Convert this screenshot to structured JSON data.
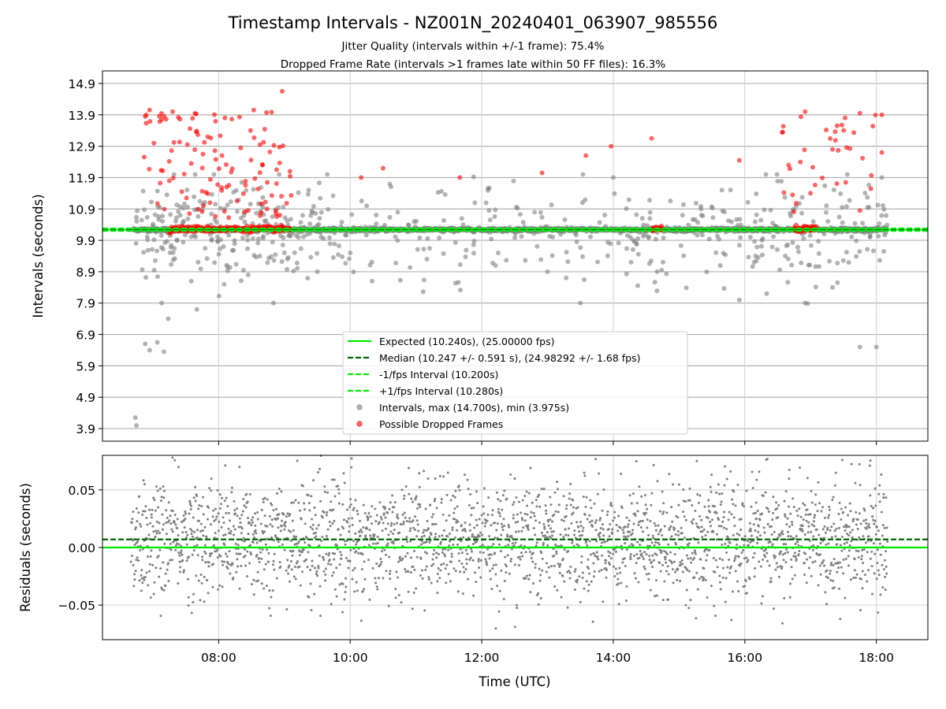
{
  "chart_data": [
    {
      "type": "scatter",
      "title": "Timestamp Intervals - NZ001N_20240401_063907_985556",
      "subtitle_lines": [
        "Jitter Quality (intervals within +/-1 frame): 75.4%",
        "Dropped Frame Rate (intervals >1 frames late within 50 FF files): 16.3%"
      ],
      "xlabel": "",
      "ylabel": "Intervals (seconds)",
      "xlim": [
        "06:14",
        "18:47"
      ],
      "ylim": [
        3.5,
        15.3
      ],
      "yticks": [
        3.9,
        4.9,
        5.9,
        6.9,
        7.9,
        8.9,
        9.9,
        10.9,
        11.9,
        12.9,
        13.9,
        14.9
      ],
      "xticks": [
        "08:00",
        "10:00",
        "12:00",
        "14:00",
        "16:00",
        "18:00"
      ],
      "grid": true,
      "legend_position": "lower center",
      "reference_lines": [
        {
          "label": "Expected (10.240s), (25.00000 fps)",
          "y": 10.24,
          "style": "solid",
          "color": "#00ee00"
        },
        {
          "label": "Median (10.247 +/- 0.591 s), (24.98292 +/- 1.68 fps)",
          "y": 10.247,
          "style": "dashed",
          "color": "#006400"
        },
        {
          "label": "-1/fps Interval (10.200s)",
          "y": 10.2,
          "style": "dashed",
          "color": "#00ee00"
        },
        {
          "label": "+1/fps Interval (10.280s)",
          "y": 10.28,
          "style": "dashed",
          "color": "#00ee00"
        }
      ],
      "series": [
        {
          "name": "Intervals, max (14.700s), min (3.975s)",
          "color": "#808080",
          "points_sample": [
            [
              "06:44",
              4.25
            ],
            [
              "06:45",
              4.0
            ],
            [
              "06:53",
              6.6
            ],
            [
              "06:57",
              6.4
            ],
            [
              "07:04",
              6.65
            ],
            [
              "07:10",
              6.35
            ],
            [
              "07:14",
              7.4
            ],
            [
              "07:08",
              7.9
            ],
            [
              "07:35",
              8.6
            ],
            [
              "08:05",
              8.5
            ],
            [
              "08:27",
              8.8
            ],
            [
              "08:50",
              7.9
            ],
            [
              "09:00",
              9.5
            ],
            [
              "09:30",
              8.9
            ],
            [
              "10:00",
              9.5
            ],
            [
              "10:20",
              8.6
            ],
            [
              "11:10",
              9.3
            ],
            [
              "12:15",
              9.5
            ],
            [
              "13:00",
              8.9
            ],
            [
              "13:30",
              7.9
            ],
            [
              "14:00",
              11.9
            ],
            [
              "14:40",
              8.9
            ],
            [
              "15:20",
              10.9
            ],
            [
              "15:55",
              8.0
            ],
            [
              "16:20",
              8.2
            ],
            [
              "16:55",
              7.9
            ],
            [
              "17:20",
              8.4
            ],
            [
              "17:45",
              6.5
            ],
            [
              "18:00",
              6.5
            ],
            [
              "18:05",
              11.9
            ]
          ]
        },
        {
          "name": "Possible Dropped Frames",
          "color": "#ff0000",
          "points_sample": [
            [
              "06:53",
              13.85
            ],
            [
              "06:57",
              14.05
            ],
            [
              "07:08",
              13.75
            ],
            [
              "07:18",
              14.0
            ],
            [
              "07:35",
              12.35
            ],
            [
              "07:50",
              13.2
            ],
            [
              "08:03",
              12.6
            ],
            [
              "08:32",
              14.05
            ],
            [
              "08:40",
              12.3
            ],
            [
              "08:58",
              14.65
            ],
            [
              "09:05",
              12.1
            ],
            [
              "10:10",
              11.9
            ],
            [
              "10:30",
              12.2
            ],
            [
              "11:40",
              11.9
            ],
            [
              "12:55",
              12.05
            ],
            [
              "13:35",
              12.6
            ],
            [
              "13:58",
              12.9
            ],
            [
              "14:35",
              13.15
            ],
            [
              "15:55",
              12.45
            ],
            [
              "16:40",
              12.3
            ],
            [
              "16:55",
              14.0
            ],
            [
              "17:20",
              12.8
            ],
            [
              "17:45",
              13.95
            ],
            [
              "18:05",
              13.9
            ],
            [
              "18:05",
              12.7
            ]
          ]
        }
      ]
    },
    {
      "type": "scatter",
      "title": "",
      "xlabel": "Time (UTC)",
      "ylabel": "Residuals (seconds)",
      "xlim": [
        "06:14",
        "18:47"
      ],
      "ylim": [
        -0.08,
        0.08
      ],
      "yticks": [
        -0.05,
        0.0,
        0.05
      ],
      "ytick_labels": [
        "−0.05",
        "0.00",
        "0.05"
      ],
      "xticks": [
        "08:00",
        "10:00",
        "12:00",
        "14:00",
        "16:00",
        "18:00"
      ],
      "grid": true,
      "reference_lines": [
        {
          "y": 0.0,
          "style": "solid",
          "color": "#00ee00"
        },
        {
          "y": 0.007,
          "style": "dashed",
          "color": "#006400"
        }
      ],
      "series": [
        {
          "color": "#808080",
          "spread_sd": 0.025,
          "x_range": [
            "06:40",
            "18:10"
          ]
        }
      ]
    }
  ]
}
